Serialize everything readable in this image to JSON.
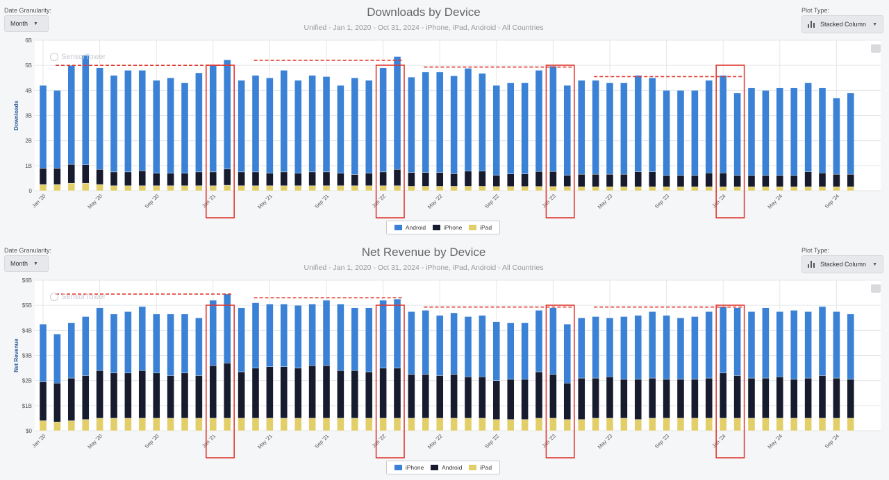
{
  "panels": [
    {
      "controls": {
        "granularity_label": "Date Granularity:",
        "granularity_value": "Month",
        "plot_type_label": "Plot Type:",
        "plot_type_value": "Stacked Column"
      },
      "watermark": "SensorTower",
      "legend": [
        {
          "name": "Android",
          "color": "#3b82d6"
        },
        {
          "name": "iPhone",
          "color": "#161c2e"
        },
        {
          "name": "iPad",
          "color": "#e3cf6a"
        }
      ]
    },
    {
      "controls": {
        "granularity_label": "Date Granularity:",
        "granularity_value": "Month",
        "plot_type_label": "Plot Type:",
        "plot_type_value": "Stacked Column"
      },
      "watermark": "SensorTower",
      "legend": [
        {
          "name": "iPhone",
          "color": "#3b82d6"
        },
        {
          "name": "Android",
          "color": "#161c2e"
        },
        {
          "name": "iPad",
          "color": "#e3cf6a"
        }
      ]
    }
  ],
  "chart_data": [
    {
      "type": "bar",
      "stacked": true,
      "title": "Downloads by Device",
      "subtitle": "Unified - Jan 1, 2020 - Oct 31, 2024 - iPhone, iPad, Android - All Countries",
      "ylabel": "Downloads",
      "ylim": [
        0,
        6
      ],
      "yticks": [
        "0",
        "1B",
        "2B",
        "3B",
        "4B",
        "5B",
        "6B"
      ],
      "xticks": [
        {
          "index": 0,
          "label": "Jan '20"
        },
        {
          "index": 4,
          "label": "May '20"
        },
        {
          "index": 8,
          "label": "Sep '20"
        },
        {
          "index": 12,
          "label": "Jan '21"
        },
        {
          "index": 16,
          "label": "May '21"
        },
        {
          "index": 20,
          "label": "Sep '21"
        },
        {
          "index": 24,
          "label": "Jan '22"
        },
        {
          "index": 28,
          "label": "May '22"
        },
        {
          "index": 32,
          "label": "Sep '22"
        },
        {
          "index": 36,
          "label": "Jan '23"
        },
        {
          "index": 40,
          "label": "May '23"
        },
        {
          "index": 44,
          "label": "Sep '23"
        },
        {
          "index": 48,
          "label": "Jan '24"
        },
        {
          "index": 52,
          "label": "May '24"
        },
        {
          "index": 56,
          "label": "Sep '24"
        }
      ],
      "series": [
        {
          "name": "iPad",
          "color": "#e3cf6a",
          "values": [
            0.25,
            0.25,
            0.3,
            0.3,
            0.25,
            0.2,
            0.2,
            0.2,
            0.2,
            0.2,
            0.2,
            0.2,
            0.2,
            0.22,
            0.2,
            0.2,
            0.2,
            0.2,
            0.2,
            0.2,
            0.2,
            0.2,
            0.2,
            0.2,
            0.2,
            0.2,
            0.18,
            0.18,
            0.18,
            0.18,
            0.18,
            0.18,
            0.17,
            0.17,
            0.17,
            0.17,
            0.17,
            0.17,
            0.16,
            0.16,
            0.16,
            0.16,
            0.16,
            0.16,
            0.16,
            0.16,
            0.16,
            0.16,
            0.16,
            0.16,
            0.16,
            0.16,
            0.16,
            0.16,
            0.16,
            0.16,
            0.16,
            0.16
          ]
        },
        {
          "name": "iPhone",
          "color": "#161c2e",
          "values": [
            0.65,
            0.65,
            0.75,
            0.73,
            0.6,
            0.55,
            0.55,
            0.6,
            0.5,
            0.5,
            0.5,
            0.55,
            0.55,
            0.65,
            0.55,
            0.55,
            0.5,
            0.55,
            0.5,
            0.55,
            0.55,
            0.5,
            0.45,
            0.5,
            0.55,
            0.65,
            0.55,
            0.55,
            0.55,
            0.5,
            0.6,
            0.6,
            0.45,
            0.5,
            0.5,
            0.6,
            0.6,
            0.45,
            0.5,
            0.5,
            0.5,
            0.5,
            0.6,
            0.6,
            0.45,
            0.45,
            0.45,
            0.55,
            0.55,
            0.45,
            0.45,
            0.45,
            0.45,
            0.45,
            0.6,
            0.55,
            0.5,
            0.5
          ]
        },
        {
          "name": "Android",
          "color": "#3b82d6",
          "values": [
            3.3,
            3.1,
            3.95,
            4.37,
            4.05,
            3.85,
            4.05,
            4.0,
            3.7,
            3.8,
            3.6,
            3.95,
            4.25,
            4.35,
            3.65,
            3.85,
            3.8,
            4.05,
            3.7,
            3.85,
            3.8,
            3.5,
            3.85,
            3.7,
            4.15,
            4.5,
            3.8,
            4.0,
            4.0,
            3.9,
            4.1,
            3.9,
            3.58,
            3.63,
            3.63,
            4.03,
            4.2,
            3.58,
            3.74,
            3.74,
            3.64,
            3.64,
            3.84,
            3.74,
            3.39,
            3.39,
            3.39,
            3.69,
            3.89,
            3.29,
            3.49,
            3.39,
            3.49,
            3.49,
            3.54,
            3.39,
            3.04,
            3.24
          ]
        }
      ],
      "reference_lines": [
        {
          "from": 0,
          "to": 13,
          "value": 5.0
        },
        {
          "from": 14,
          "to": 25,
          "value": 5.2
        },
        {
          "from": 26,
          "to": 37,
          "value": 4.93
        },
        {
          "from": 38,
          "to": 49,
          "value": 4.55
        }
      ],
      "highlight_boxes": [
        {
          "from": 12,
          "to": 13
        },
        {
          "from": 24,
          "to": 25
        },
        {
          "from": 36,
          "to": 37
        },
        {
          "from": 48,
          "to": 49
        }
      ]
    },
    {
      "type": "bar",
      "stacked": true,
      "title": "Net Revenue by Device",
      "subtitle": "Unified - Jan 1, 2020 - Oct 31, 2024 - iPhone, iPad, Android - All Countries",
      "ylabel": "Net Revenue",
      "ylim": [
        0,
        6
      ],
      "yticks": [
        "$0",
        "$1B",
        "$2B",
        "$3B",
        "$4B",
        "$5B",
        "$6B"
      ],
      "xticks": [
        {
          "index": 0,
          "label": "Jan '20"
        },
        {
          "index": 4,
          "label": "May '20"
        },
        {
          "index": 8,
          "label": "Sep '20"
        },
        {
          "index": 12,
          "label": "Jan '21"
        },
        {
          "index": 16,
          "label": "May '21"
        },
        {
          "index": 20,
          "label": "Sep '21"
        },
        {
          "index": 24,
          "label": "Jan '22"
        },
        {
          "index": 28,
          "label": "May '22"
        },
        {
          "index": 32,
          "label": "Sep '22"
        },
        {
          "index": 36,
          "label": "Jan '23"
        },
        {
          "index": 40,
          "label": "May '23"
        },
        {
          "index": 44,
          "label": "Sep '23"
        },
        {
          "index": 48,
          "label": "Jan '24"
        },
        {
          "index": 52,
          "label": "May '24"
        },
        {
          "index": 56,
          "label": "Sep '24"
        }
      ],
      "series": [
        {
          "name": "iPad",
          "color": "#e3cf6a",
          "values": [
            0.4,
            0.35,
            0.4,
            0.45,
            0.5,
            0.5,
            0.5,
            0.5,
            0.5,
            0.5,
            0.5,
            0.5,
            0.5,
            0.5,
            0.5,
            0.5,
            0.5,
            0.5,
            0.5,
            0.5,
            0.5,
            0.5,
            0.5,
            0.5,
            0.5,
            0.5,
            0.5,
            0.5,
            0.5,
            0.5,
            0.5,
            0.5,
            0.45,
            0.45,
            0.45,
            0.5,
            0.5,
            0.45,
            0.45,
            0.5,
            0.5,
            0.5,
            0.45,
            0.5,
            0.5,
            0.5,
            0.5,
            0.5,
            0.5,
            0.5,
            0.5,
            0.5,
            0.5,
            0.5,
            0.5,
            0.5,
            0.5,
            0.5
          ]
        },
        {
          "name": "Android",
          "color": "#161c2e",
          "values": [
            1.55,
            1.55,
            1.7,
            1.75,
            1.9,
            1.8,
            1.8,
            1.9,
            1.8,
            1.7,
            1.8,
            1.7,
            2.1,
            2.2,
            1.85,
            2.0,
            2.05,
            2.05,
            2.0,
            2.1,
            2.1,
            1.9,
            1.9,
            1.85,
            2.0,
            2.0,
            1.75,
            1.75,
            1.7,
            1.75,
            1.65,
            1.65,
            1.55,
            1.6,
            1.6,
            1.85,
            1.75,
            1.45,
            1.65,
            1.6,
            1.65,
            1.55,
            1.6,
            1.6,
            1.55,
            1.55,
            1.55,
            1.6,
            1.8,
            1.7,
            1.6,
            1.6,
            1.65,
            1.55,
            1.6,
            1.7,
            1.6,
            1.55
          ]
        },
        {
          "name": "iPhone",
          "color": "#3b82d6",
          "values": [
            2.3,
            1.95,
            2.2,
            2.35,
            2.5,
            2.35,
            2.45,
            2.55,
            2.35,
            2.45,
            2.35,
            2.3,
            2.6,
            2.75,
            2.55,
            2.6,
            2.5,
            2.5,
            2.5,
            2.45,
            2.6,
            2.65,
            2.5,
            2.55,
            2.7,
            2.75,
            2.5,
            2.55,
            2.4,
            2.45,
            2.4,
            2.45,
            2.35,
            2.25,
            2.25,
            2.45,
            2.65,
            2.35,
            2.4,
            2.45,
            2.35,
            2.5,
            2.55,
            2.65,
            2.55,
            2.45,
            2.5,
            2.65,
            2.65,
            2.7,
            2.65,
            2.8,
            2.6,
            2.75,
            2.65,
            2.75,
            2.65,
            2.6
          ]
        }
      ],
      "reference_lines": [
        {
          "from": 0,
          "to": 13,
          "value": 5.45
        },
        {
          "from": 14,
          "to": 25,
          "value": 5.3
        },
        {
          "from": 26,
          "to": 37,
          "value": 4.93
        },
        {
          "from": 38,
          "to": 49,
          "value": 4.93
        }
      ],
      "highlight_boxes": [
        {
          "from": 12,
          "to": 13
        },
        {
          "from": 24,
          "to": 25
        },
        {
          "from": 36,
          "to": 37
        },
        {
          "from": 48,
          "to": 49
        }
      ]
    }
  ]
}
